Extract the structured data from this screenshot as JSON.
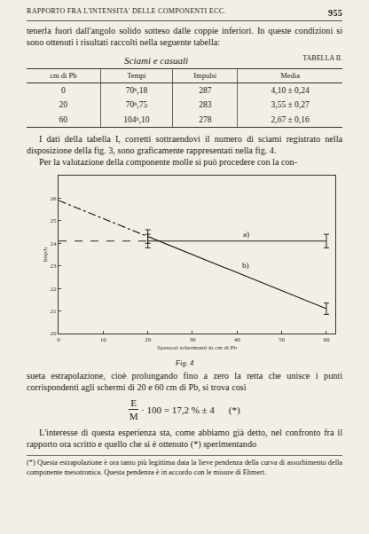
{
  "header": {
    "title": "RAPPORTO FRA L'INTENSITA' DELLE COMPONENTI ECC.",
    "page": "955"
  },
  "paragraphs_before": [
    "tenerla fuori dall'angolo solido sotteso dalle coppie inferiori. In queste condizioni si sono ottenuti i risultati raccolti nella seguente tabella:"
  ],
  "table": {
    "title": "Sciami e casuali",
    "label": "TABELLA II.",
    "columns": [
      "cm di Pb",
      "Tempi",
      "Impulsi",
      "Media"
    ],
    "rows": [
      [
        "0",
        "70ʰ,18",
        "287",
        "4,10 ± 0,24"
      ],
      [
        "20",
        "70ʰ,75",
        "283",
        "3,55 ± 0,27"
      ],
      [
        "60",
        "104ʰ,10",
        "278",
        "2,67 ± 0,16"
      ]
    ]
  },
  "paragraphs_middle": [
    "I dati della tabella I, corretti sottraendovi il numero di sciami registrato nella disposizione della fig. 3, sono graficamente rappresentati nella fig. 4.",
    "Per la valutazione della componente molle si può procedere con la con-"
  ],
  "chart_data": {
    "type": "line",
    "caption": "Fig. 4",
    "x_label": "Spessori schermanti in cm di Pb",
    "y_label": "Imp/h",
    "xlim": [
      0,
      62
    ],
    "xticks": [
      0,
      10,
      20,
      30,
      40,
      50,
      60
    ],
    "ylim": [
      20,
      27
    ],
    "yticks": [
      20,
      21,
      22,
      23,
      24,
      25,
      26
    ],
    "grid": false,
    "legend": "none",
    "series": [
      {
        "x": [
          0,
          20
        ],
        "values": [
          24.1,
          24.1
        ],
        "color": "#222222",
        "line_style": "dash"
      },
      {
        "name": "a)",
        "x": [
          20,
          60
        ],
        "values": [
          24.1,
          24.1
        ],
        "errors": [
          0.3,
          0.3
        ],
        "color": "#222222",
        "line_style": "solid",
        "marker": "none"
      },
      {
        "x": [
          0,
          20
        ],
        "values": [
          25.9,
          24.3
        ],
        "color": "#222222",
        "line_style": "dashdot"
      },
      {
        "name": "b)",
        "x": [
          20,
          60
        ],
        "values": [
          24.3,
          21.1
        ],
        "errors": [
          0.3,
          0.25
        ],
        "color": "#222222",
        "line_style": "solid",
        "marker": "none"
      }
    ]
  },
  "paragraphs_after": [
    "sueta estrapolazione, cioè prolungando fino a zero la retta che unisce i punti corrispondenti agli schermi di 20 e 60 cm di Pb, si trova così"
  ],
  "formula": {
    "numerator": "E",
    "denominator": "M",
    "rest": "· 100 = 17,2 % ± 4",
    "note": "(*)"
  },
  "closing": "L'interesse di questa esperienza sta, come abbiamo già detto, nel confronto fra il rapporto ora scritto e quello che si è ottenuto (*) sperimentando",
  "footnote": "(*) Questa estrapolazione è ora tanto più legittima data la lieve pendenza della curva di assorbimento della componente mesotronica. Questa pendenza è in accordo con le misure di Ehmert."
}
